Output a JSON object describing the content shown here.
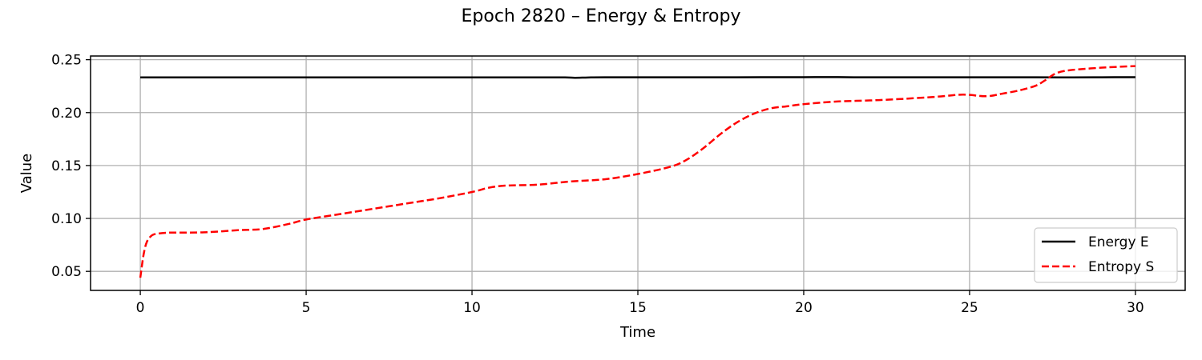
{
  "chart_data": {
    "type": "line",
    "title": "Epoch 2820 – Energy & Entropy",
    "xlabel": "Time",
    "ylabel": "Value",
    "xlim": [
      -1.5,
      31.5
    ],
    "ylim": [
      0.032,
      0.2535
    ],
    "xticks": [
      0,
      5,
      10,
      15,
      20,
      25,
      30
    ],
    "xtick_labels": [
      "0",
      "5",
      "10",
      "15",
      "20",
      "25",
      "30"
    ],
    "yticks": [
      0.05,
      0.1,
      0.15,
      0.2,
      0.25
    ],
    "ytick_labels": [
      "0.05",
      "0.10",
      "0.15",
      "0.20",
      "0.25"
    ],
    "grid": true,
    "legend_position": "lower-right",
    "series": [
      {
        "name": "Energy E",
        "color": "#000000",
        "style": "solid",
        "x": [
          0,
          2,
          4,
          6,
          8,
          10,
          12,
          12.8,
          13.1,
          13.5,
          14,
          16,
          18,
          20,
          20.8,
          21.5,
          23,
          25,
          27,
          28,
          29,
          30
        ],
        "y": [
          0.2333,
          0.2333,
          0.2333,
          0.2333,
          0.2333,
          0.2333,
          0.2333,
          0.2333,
          0.2329,
          0.2332,
          0.2334,
          0.2334,
          0.2334,
          0.2335,
          0.2336,
          0.2334,
          0.2334,
          0.2334,
          0.2334,
          0.2333,
          0.2334,
          0.2335
        ]
      },
      {
        "name": "Entropy S",
        "color": "#ff0000",
        "style": "dashed",
        "x": [
          0,
          0.1,
          0.2,
          0.35,
          0.5,
          0.8,
          1.2,
          2,
          3,
          3.7,
          4.5,
          5,
          6,
          7,
          8,
          9,
          10,
          10.5,
          11,
          12,
          13,
          14,
          15,
          16,
          16.5,
          17,
          17.5,
          18,
          18.5,
          19,
          19.5,
          20,
          21,
          22,
          23,
          24,
          24.8,
          25.5,
          26,
          26.5,
          27,
          27.3,
          27.6,
          28,
          29,
          30
        ],
        "y": [
          0.044,
          0.066,
          0.078,
          0.084,
          0.0855,
          0.0865,
          0.0866,
          0.087,
          0.089,
          0.09,
          0.095,
          0.099,
          0.104,
          0.109,
          0.114,
          0.119,
          0.125,
          0.129,
          0.131,
          0.132,
          0.135,
          0.137,
          0.142,
          0.149,
          0.156,
          0.167,
          0.18,
          0.191,
          0.199,
          0.204,
          0.206,
          0.208,
          0.2105,
          0.2115,
          0.213,
          0.215,
          0.217,
          0.2155,
          0.218,
          0.221,
          0.2255,
          0.231,
          0.237,
          0.24,
          0.2425,
          0.244
        ]
      }
    ]
  }
}
